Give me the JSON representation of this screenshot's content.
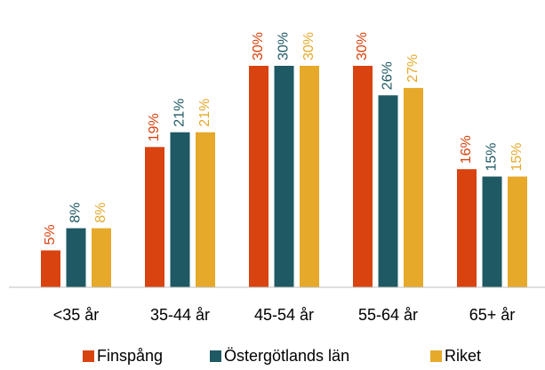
{
  "chart_data": {
    "type": "bar",
    "categories": [
      "<35 år",
      "35-44 år",
      "45-54 år",
      "55-64 år",
      "65+ år"
    ],
    "series": [
      {
        "name": "Finspång",
        "color": "#d9430f",
        "values": [
          5,
          19,
          30,
          30,
          16
        ],
        "value_labels": [
          "5%",
          "19%",
          "30%",
          "30%",
          "16%"
        ]
      },
      {
        "name": "Östergötlands län",
        "color": "#1f5963",
        "values": [
          8,
          21,
          30,
          26,
          15
        ],
        "value_labels": [
          "8%",
          "21%",
          "30%",
          "26%",
          "15%"
        ]
      },
      {
        "name": "Riket",
        "color": "#e6a92a",
        "values": [
          8,
          21,
          30,
          27,
          15
        ],
        "value_labels": [
          "8%",
          "21%",
          "30%",
          "27%",
          "15%"
        ]
      }
    ],
    "legend": "bottom"
  }
}
